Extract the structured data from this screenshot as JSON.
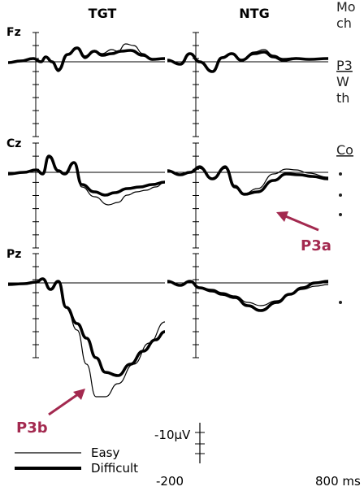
{
  "chart_data": {
    "type": "line",
    "columns": [
      "TGT",
      "NTG"
    ],
    "rows": [
      "Fz",
      "Cz",
      "Pz"
    ],
    "x_range_ms": [
      -200,
      800
    ],
    "series": [
      {
        "name": "Easy",
        "style": "thin"
      },
      {
        "name": "Difficult",
        "style": "thick"
      }
    ],
    "annotations": [
      {
        "label": "P3a",
        "panel": "Cz-NTG",
        "color": "#a3294f"
      },
      {
        "label": "P3b",
        "panel": "Pz-TGT",
        "color": "#a3294f"
      }
    ],
    "legend": {
      "position": "bottom-left",
      "items": [
        "Easy",
        "Difficult"
      ]
    },
    "scale_bar": {
      "amplitude": "-10µV",
      "x_start": "-200",
      "x_end": "800 ms"
    }
  },
  "side_text": {
    "line1": "Mo",
    "line2": "ch",
    "line3": "P3",
    "line4": "W",
    "line5": "th",
    "line6": "Co"
  },
  "colors": {
    "annotation": "#a3294f",
    "trace": "#000000"
  }
}
